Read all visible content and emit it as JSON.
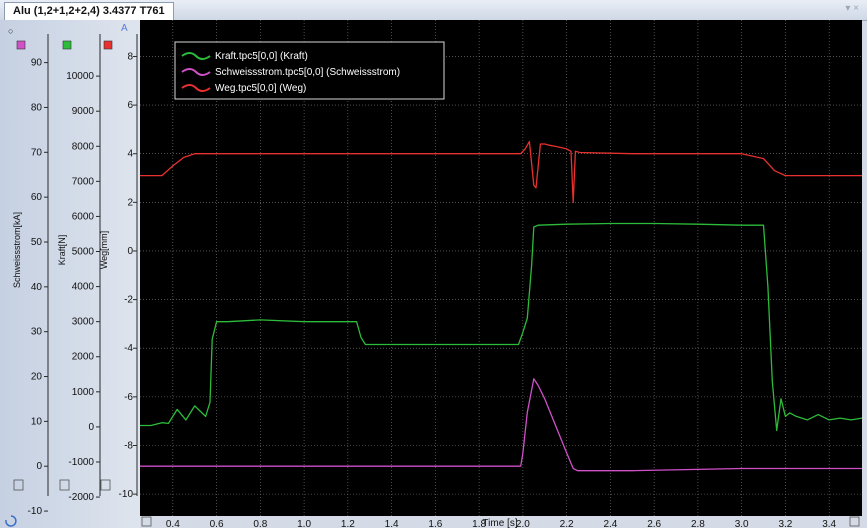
{
  "tab": {
    "title": "Alu  (1,2+1,2+2,4)  3.4377 T761"
  },
  "tab_controls": {
    "arrow": "▾",
    "close": "×"
  },
  "marker_a": "A",
  "corner_marker": "○",
  "colors": {
    "plot_bg": "#000000",
    "grid": "#7f7f7f",
    "kraft": "#2dbb3a",
    "strom": "#d050c8",
    "weg": "#e8312e",
    "panel": "#c5d0e2"
  },
  "chart_data": {
    "type": "line",
    "xlabel": "Time [s]",
    "xlim": [
      0.25,
      3.55
    ],
    "x_ticks": [
      "0.4",
      "0.6",
      "0.8",
      "1.0",
      "1.2",
      "1.4",
      "1.6",
      "1.8",
      "2.0",
      "2.2",
      "2.4",
      "2.6",
      "2.8",
      "3.0",
      "3.2",
      "3.4"
    ],
    "axes": [
      {
        "id": "schweissstrom",
        "label": "Schweissstrom[kA]",
        "color": "#d050c8",
        "ylim": [
          -11.1,
          99.5
        ],
        "ticks": [
          "90",
          "80",
          "70",
          "60",
          "50",
          "40",
          "30",
          "20",
          "10",
          "0",
          "-10"
        ]
      },
      {
        "id": "kraft",
        "label": "Kraft[N]",
        "color": "#2dbb3a",
        "ylim": [
          -2540,
          11600
        ],
        "ticks": [
          "10000",
          "9000",
          "8000",
          "7000",
          "6000",
          "5000",
          "4000",
          "3000",
          "2000",
          "1000",
          "0",
          "-1000",
          "-2000"
        ]
      },
      {
        "id": "weg",
        "label": "Weg[mm]",
        "color": "#e8312e",
        "ylim": [
          -10.9,
          9.5
        ],
        "ticks": [
          "8",
          "6",
          "4",
          "2",
          "0",
          "-2",
          "-4",
          "-6",
          "-8",
          "-10"
        ]
      }
    ],
    "grid": true,
    "legend_position": "top-left",
    "series": [
      {
        "name": "Kraft.tpc5[0,0] (Kraft)",
        "axis": "kraft",
        "color": "#2dbb3a",
        "x": [
          0.25,
          0.3,
          0.35,
          0.38,
          0.42,
          0.46,
          0.5,
          0.55,
          0.57,
          0.58,
          0.6,
          0.65,
          0.8,
          1.0,
          1.2,
          1.24,
          1.26,
          1.28,
          1.4,
          1.6,
          1.8,
          1.9,
          1.98,
          2.0,
          2.02,
          2.04,
          2.05,
          2.07,
          2.2,
          2.4,
          2.6,
          2.8,
          3.0,
          3.1,
          3.12,
          3.14,
          3.16,
          3.18,
          3.2,
          3.22,
          3.25,
          3.3,
          3.35,
          3.4,
          3.45,
          3.5,
          3.55
        ],
        "y": [
          40,
          40,
          120,
          100,
          500,
          200,
          600,
          300,
          700,
          2500,
          3000,
          3000,
          3050,
          3000,
          3000,
          3000,
          2550,
          2350,
          2350,
          2350,
          2350,
          2350,
          2350,
          2700,
          3100,
          4600,
          5700,
          5750,
          5780,
          5800,
          5800,
          5780,
          5750,
          5750,
          4000,
          1300,
          -100,
          800,
          300,
          400,
          300,
          200,
          350,
          200,
          250,
          200,
          250
        ]
      },
      {
        "name": "Schweissstrom.tpc5[0,0] (Schweissstrom)",
        "axis": "schweissstrom",
        "color": "#d050c8",
        "x": [
          0.25,
          0.5,
          1.0,
          1.5,
          1.99,
          2.0,
          2.02,
          2.05,
          2.07,
          2.1,
          2.15,
          2.2,
          2.23,
          2.25,
          2.3,
          2.5,
          3.0,
          3.55
        ],
        "y": [
          0,
          0,
          0,
          0,
          0,
          3,
          12,
          19.5,
          18,
          15,
          9,
          3,
          -0.5,
          -1,
          -1,
          -1,
          -0.5,
          -0.5
        ]
      },
      {
        "name": "Weg.tpc5[0,0] (Weg)",
        "axis": "weg",
        "color": "#e8312e",
        "x": [
          0.25,
          0.35,
          0.4,
          0.45,
          0.5,
          0.6,
          1.0,
          1.5,
          1.99,
          2.01,
          2.03,
          2.05,
          2.06,
          2.08,
          2.1,
          2.12,
          2.15,
          2.2,
          2.22,
          2.23,
          2.24,
          2.26,
          2.5,
          3.0,
          3.1,
          3.15,
          3.2,
          3.3,
          3.55
        ],
        "y": [
          3.1,
          3.1,
          3.5,
          3.85,
          4.0,
          4.0,
          4.0,
          4.0,
          4.0,
          4.2,
          4.5,
          2.7,
          2.6,
          4.4,
          4.4,
          4.35,
          4.3,
          4.2,
          4.1,
          2.0,
          4.1,
          4.05,
          4.0,
          4.0,
          3.8,
          3.3,
          3.1,
          3.1,
          3.1
        ]
      }
    ]
  }
}
